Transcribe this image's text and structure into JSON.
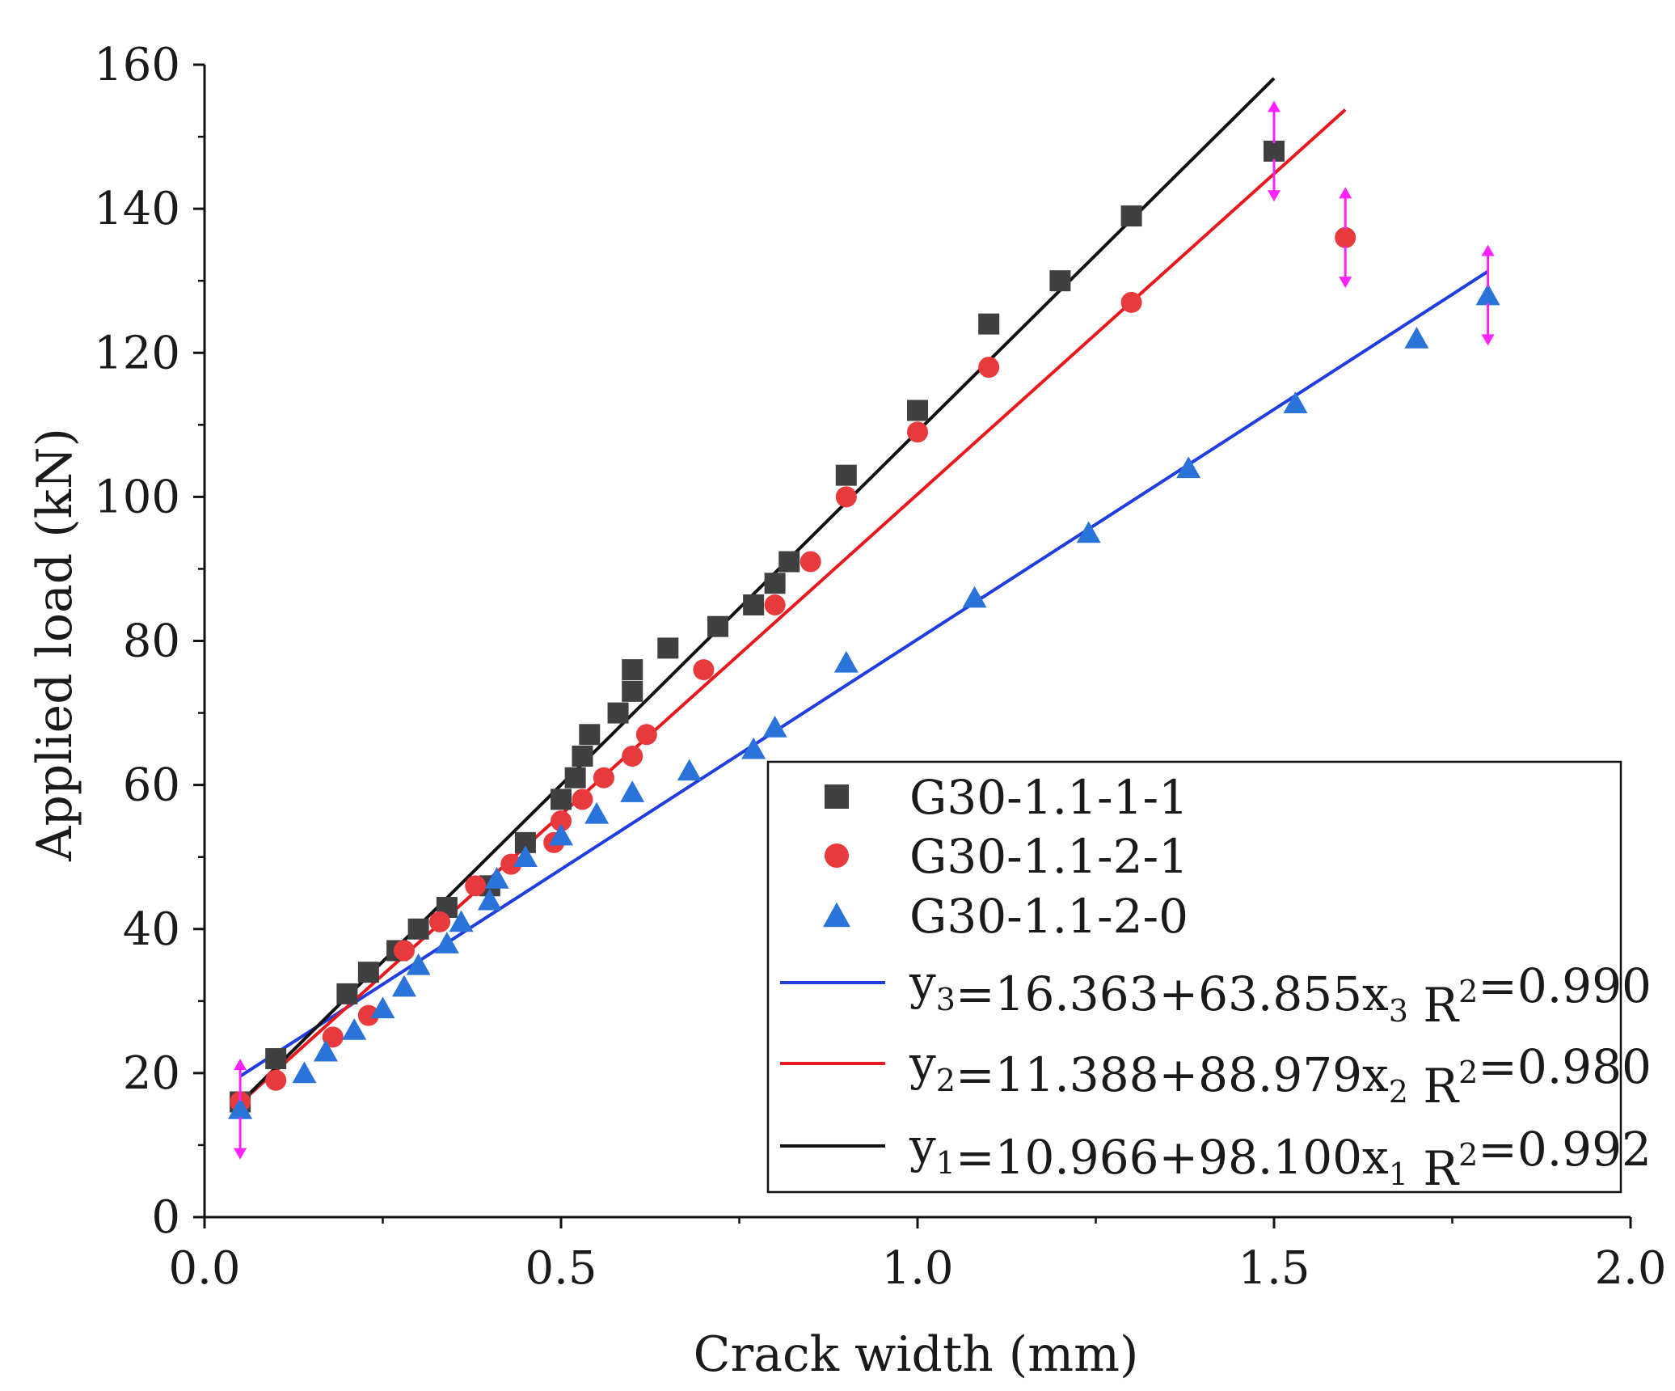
{
  "chart_data": {
    "type": "scatter",
    "xlabel": "Crack width (mm)",
    "ylabel": "Applied load (kN)",
    "xlim": [
      0,
      2.0
    ],
    "ylim": [
      0,
      160
    ],
    "xticks": [
      0.0,
      0.5,
      1.0,
      1.5,
      2.0
    ],
    "xtick_labels": [
      "0.0",
      "0.5",
      "1.0",
      "1.5",
      "2.0"
    ],
    "yticks": [
      0,
      20,
      40,
      60,
      80,
      100,
      120,
      140,
      160
    ],
    "ytick_labels": [
      "0",
      "20",
      "40",
      "60",
      "80",
      "100",
      "120",
      "140",
      "160"
    ],
    "series": [
      {
        "name": "G30-1.1-1-1",
        "marker": "square",
        "color": "#404040",
        "points": [
          [
            0.05,
            16
          ],
          [
            0.1,
            22
          ],
          [
            0.2,
            31
          ],
          [
            0.23,
            34
          ],
          [
            0.27,
            37
          ],
          [
            0.3,
            40
          ],
          [
            0.34,
            43
          ],
          [
            0.4,
            46
          ],
          [
            0.45,
            52
          ],
          [
            0.5,
            58
          ],
          [
            0.52,
            61
          ],
          [
            0.53,
            64
          ],
          [
            0.54,
            67
          ],
          [
            0.58,
            70
          ],
          [
            0.6,
            73
          ],
          [
            0.6,
            76
          ],
          [
            0.65,
            79
          ],
          [
            0.72,
            82
          ],
          [
            0.77,
            85
          ],
          [
            0.8,
            88
          ],
          [
            0.82,
            91
          ],
          [
            0.9,
            103
          ],
          [
            1.0,
            112
          ],
          [
            1.1,
            124
          ],
          [
            1.2,
            130
          ],
          [
            1.3,
            139
          ],
          [
            1.5,
            148
          ]
        ]
      },
      {
        "name": "G30-1.1-2-1",
        "marker": "circle",
        "color": "#e8393c",
        "points": [
          [
            0.05,
            16
          ],
          [
            0.1,
            19
          ],
          [
            0.18,
            25
          ],
          [
            0.23,
            28
          ],
          [
            0.28,
            37
          ],
          [
            0.33,
            41
          ],
          [
            0.38,
            46
          ],
          [
            0.43,
            49
          ],
          [
            0.49,
            52
          ],
          [
            0.5,
            55
          ],
          [
            0.53,
            58
          ],
          [
            0.56,
            61
          ],
          [
            0.6,
            64
          ],
          [
            0.62,
            67
          ],
          [
            0.7,
            76
          ],
          [
            0.8,
            85
          ],
          [
            0.85,
            91
          ],
          [
            0.9,
            100
          ],
          [
            1.0,
            109
          ],
          [
            1.1,
            118
          ],
          [
            1.3,
            127
          ],
          [
            1.6,
            136
          ]
        ]
      },
      {
        "name": "G30-1.1-2-0",
        "marker": "triangle",
        "color": "#2a73d9",
        "points": [
          [
            0.05,
            15
          ],
          [
            0.14,
            20
          ],
          [
            0.17,
            23
          ],
          [
            0.21,
            26
          ],
          [
            0.25,
            29
          ],
          [
            0.28,
            32
          ],
          [
            0.3,
            35
          ],
          [
            0.34,
            38
          ],
          [
            0.36,
            41
          ],
          [
            0.4,
            44
          ],
          [
            0.41,
            47
          ],
          [
            0.45,
            50
          ],
          [
            0.5,
            53
          ],
          [
            0.55,
            56
          ],
          [
            0.6,
            59
          ],
          [
            0.68,
            62
          ],
          [
            0.77,
            65
          ],
          [
            0.8,
            68
          ],
          [
            0.9,
            77
          ],
          [
            1.08,
            86
          ],
          [
            1.24,
            95
          ],
          [
            1.38,
            104
          ],
          [
            1.53,
            113
          ],
          [
            1.7,
            122
          ],
          [
            1.8,
            128
          ]
        ]
      }
    ],
    "fits": [
      {
        "label": "y3=16.363+63.855x3 R2=0.990",
        "intercept": 16.363,
        "slope": 63.855,
        "x_range": [
          0.05,
          1.8
        ],
        "color": "#1f3de0"
      },
      {
        "label": "y2=11.388+88.979x2 R2=0.980",
        "intercept": 11.388,
        "slope": 88.979,
        "x_range": [
          0.05,
          1.6
        ],
        "color": "#e8191e"
      },
      {
        "label": "y1=10.966+98.100x1 R2=0.992",
        "intercept": 10.966,
        "slope": 98.1,
        "x_range": [
          0.05,
          1.5
        ],
        "color": "#111111"
      }
    ],
    "error_bars": [
      {
        "x": 0.05,
        "y": 15,
        "low": 8,
        "high": 22
      },
      {
        "x": 1.5,
        "y": 148,
        "low": 141,
        "high": 155
      },
      {
        "x": 1.6,
        "y": 136,
        "low": 129,
        "high": 143
      },
      {
        "x": 1.8,
        "y": 128,
        "low": 121,
        "high": 135
      }
    ],
    "error_bar_color": "#ff22ff",
    "legend_position": "bottom-right",
    "legend": {
      "markers": [
        "G30-1.1-1-1",
        "G30-1.1-2-1",
        "G30-1.1-2-0"
      ],
      "fits": [
        {
          "y": "y",
          "sub": "3",
          "eq": "=16.363+63.855x",
          "r": " R",
          "sup": "2",
          "rv": "=0.990"
        },
        {
          "y": "y",
          "sub": "2",
          "eq": "=11.388+88.979x",
          "r": " R",
          "sup": "2",
          "rv": "=0.980"
        },
        {
          "y": "y",
          "sub": "1",
          "eq": "=10.966+98.100x",
          "r": " R",
          "sup": "2",
          "rv": "=0.992"
        }
      ]
    }
  }
}
